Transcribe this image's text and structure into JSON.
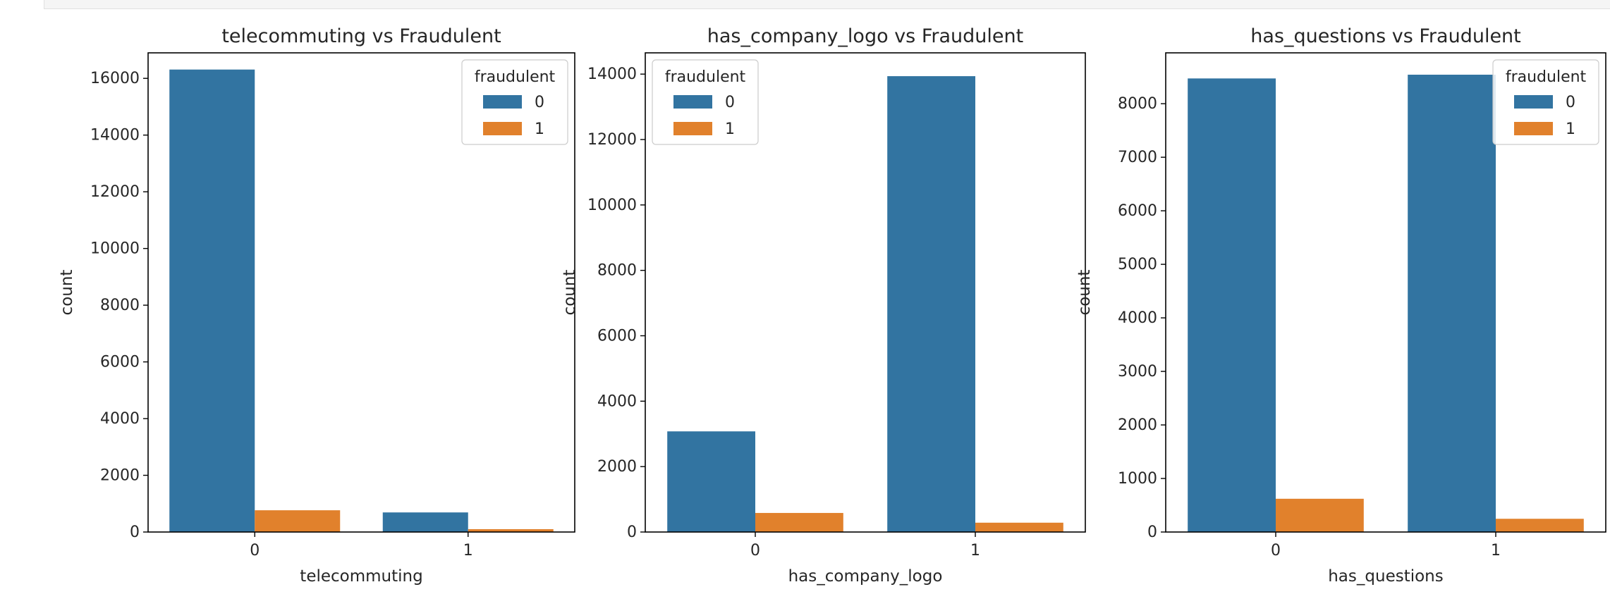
{
  "chart_data": [
    {
      "type": "bar",
      "title": "telecommuting vs Fraudulent",
      "xlabel": "telecommuting",
      "ylabel": "count",
      "categories": [
        "0",
        "1"
      ],
      "ylim": [
        0,
        16900
      ],
      "yticks": [
        "0",
        "2000",
        "4000",
        "6000",
        "8000",
        "10000",
        "12000",
        "14000",
        "16000"
      ],
      "legend": {
        "title": "fraudulent",
        "position": "upper right"
      },
      "series": [
        {
          "name": "0",
          "color": "#3274a1",
          "values": [
            16311,
            691
          ]
        },
        {
          "name": "1",
          "color": "#e1812c",
          "values": [
            767,
            101
          ]
        }
      ]
    },
    {
      "type": "bar",
      "title": "has_company_logo vs Fraudulent",
      "xlabel": "has_company_logo",
      "ylabel": "count",
      "categories": [
        "0",
        "1"
      ],
      "ylim": [
        0,
        14650
      ],
      "yticks": [
        "0",
        "2000",
        "4000",
        "6000",
        "8000",
        "10000",
        "12000",
        "14000"
      ],
      "legend": {
        "title": "fraudulent",
        "position": "upper left"
      },
      "series": [
        {
          "name": "0",
          "color": "#3274a1",
          "values": [
            3077,
            13937
          ]
        },
        {
          "name": "1",
          "color": "#e1812c",
          "values": [
            583,
            285
          ]
        }
      ]
    },
    {
      "type": "bar",
      "title": "has_questions vs Fraudulent",
      "xlabel": "has_questions",
      "ylabel": "count",
      "categories": [
        "0",
        "1"
      ],
      "ylim": [
        0,
        8950
      ],
      "yticks": [
        "0",
        "1000",
        "2000",
        "3000",
        "4000",
        "5000",
        "6000",
        "7000",
        "8000"
      ],
      "legend": {
        "title": "fraudulent",
        "position": "upper right"
      },
      "series": [
        {
          "name": "0",
          "color": "#3274a1",
          "values": [
            8472,
            8542
          ]
        },
        {
          "name": "1",
          "color": "#e1812c",
          "values": [
            621,
            247
          ]
        }
      ]
    }
  ]
}
